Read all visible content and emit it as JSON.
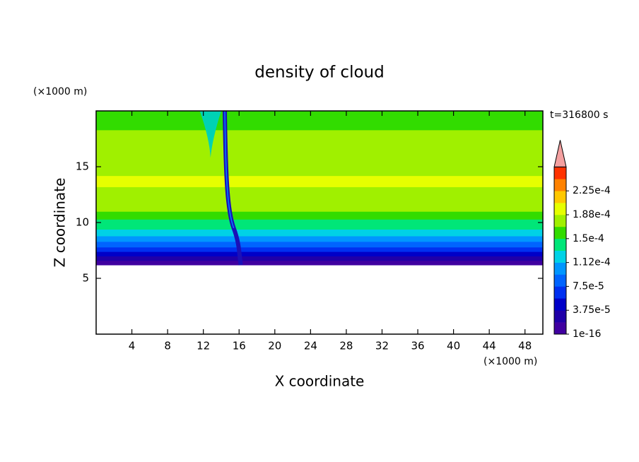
{
  "chart_data": {
    "type": "contour",
    "title": "density of cloud",
    "x_label": "X coordinate",
    "y_label": "Z coordinate",
    "x_unit": "(×1000 m)",
    "y_unit": "(×1000 m)",
    "annotation": "t=316800 s",
    "xlim": [
      0,
      50
    ],
    "ylim": [
      0,
      20
    ],
    "xticks": [
      4,
      8,
      12,
      16,
      20,
      24,
      28,
      32,
      36,
      40,
      44,
      48
    ],
    "yticks": [
      5,
      10,
      15
    ],
    "field": {
      "z": [
        6.2,
        6.6,
        7.0,
        7.4,
        7.8,
        8.3,
        8.8,
        9.4,
        10.3,
        11.0,
        12.5,
        13.2,
        14.2,
        16.5,
        18.3,
        19.2
      ],
      "values": [
        1e-05,
        3e-05,
        4.5e-05,
        6.5e-05,
        8.5e-05,
        0.0001,
        0.00012,
        0.000135,
        0.000155,
        0.000175,
        0.00018,
        0.00019,
        0.000175,
        0.000172,
        0.000155,
        0.000152
      ]
    },
    "colorbar": {
      "clim": [
        1e-16,
        0.0002625
      ],
      "ticks": [
        {
          "value": 1e-16,
          "label": "1e-16"
        },
        {
          "value": 3.75e-05,
          "label": "3.75e-5"
        },
        {
          "value": 7.5e-05,
          "label": "7.5e-5"
        },
        {
          "value": 0.0001125,
          "label": "1.12e-4"
        },
        {
          "value": 0.00015,
          "label": "1.5e-4"
        },
        {
          "value": 0.0001875,
          "label": "1.88e-4"
        },
        {
          "value": 0.000225,
          "label": "2.25e-4"
        }
      ],
      "colors": [
        "#4000a0",
        "#2000a8",
        "#0000c8",
        "#0030f0",
        "#0064ff",
        "#0096ff",
        "#00d2e6",
        "#00e678",
        "#32dc00",
        "#a0f000",
        "#e6ff00",
        "#ffc800",
        "#ff8200",
        "#ff3200"
      ],
      "extend_color": "#f4a0a0"
    }
  }
}
